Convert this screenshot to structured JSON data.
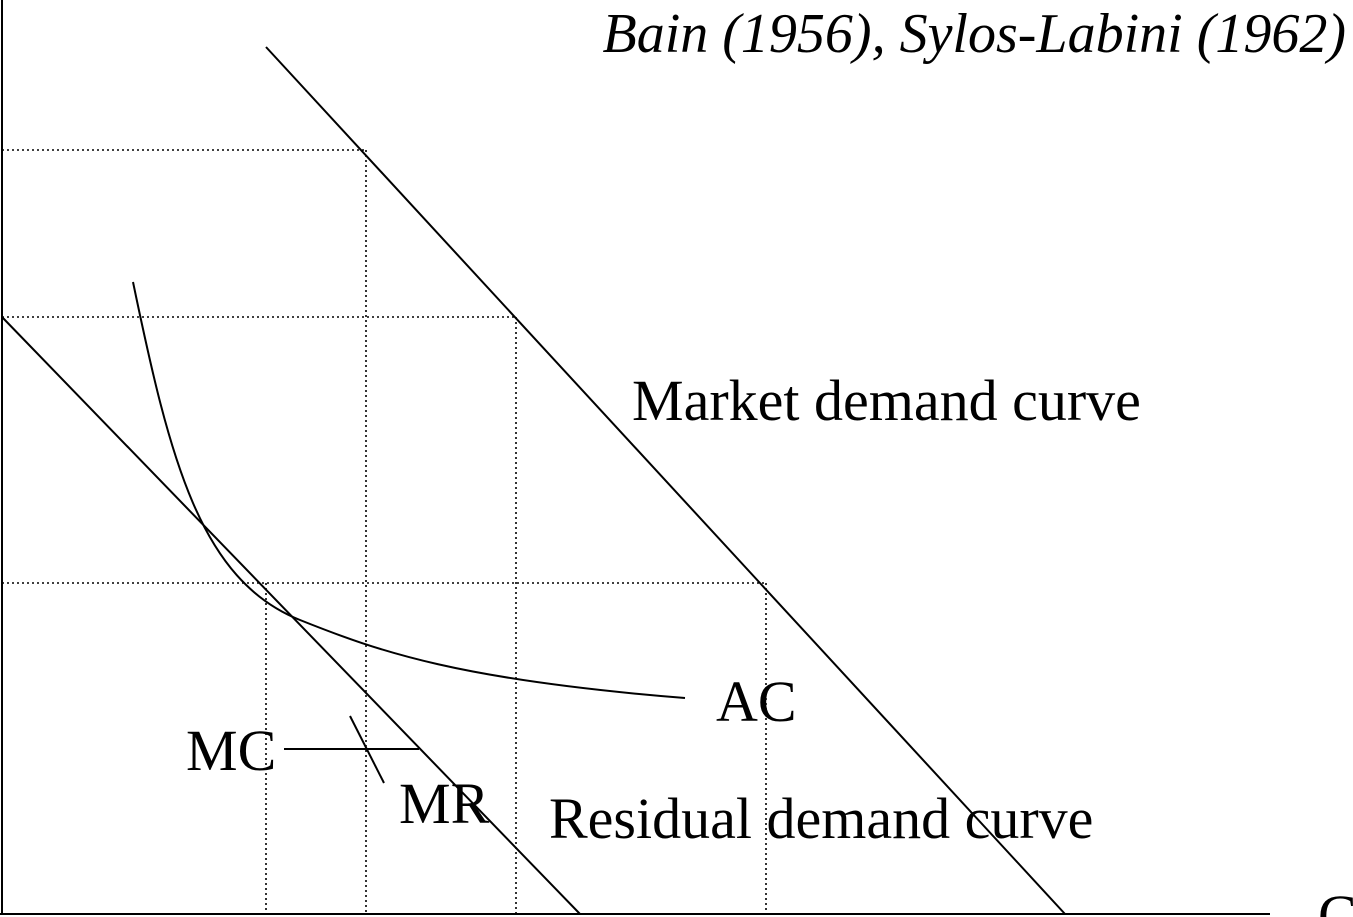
{
  "citation": "Bain (1956), Sylos-Labini (1962)",
  "curves": {
    "market_demand": "Market demand curve",
    "residual_demand": "Residual demand curve",
    "average_cost": "AC",
    "marginal_cost": "MC",
    "marginal_revenue": "MR"
  },
  "axis": {
    "x_label_partial": "C"
  },
  "colors": {
    "ink": "#000000",
    "background": "#ffffff"
  }
}
